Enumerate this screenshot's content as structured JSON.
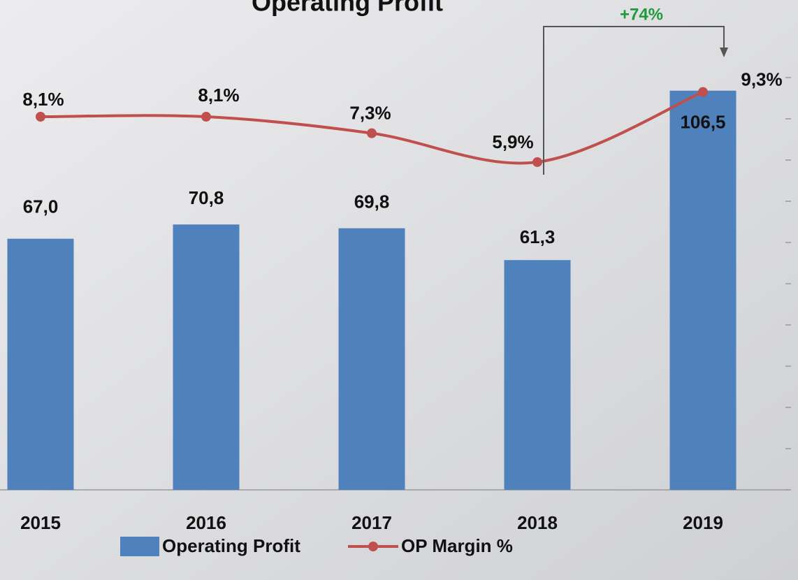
{
  "chart_data": {
    "type": "bar",
    "title": "Operating Profit",
    "categories": [
      "2015",
      "2016",
      "2017",
      "2018",
      "2019"
    ],
    "series": [
      {
        "name": "Operating Profit",
        "type": "bar",
        "color": "#4f81bd",
        "values": [
          67.0,
          70.8,
          69.8,
          61.3,
          106.5
        ],
        "value_labels": [
          "67,0",
          "70,8",
          "69,8",
          "61,3",
          "106,5"
        ]
      },
      {
        "name": "OP Margin %",
        "type": "line",
        "axis": "y2",
        "color": "#c0504d",
        "values": [
          8.1,
          8.1,
          7.3,
          5.9,
          9.3
        ],
        "value_labels": [
          "8,1%",
          "8,1%",
          "7,3%",
          "5,9%",
          "9,3%"
        ]
      }
    ],
    "ylim": [
      0,
      110
    ],
    "y2lim": [
      -10,
      10
    ],
    "y2ticks": [
      -10,
      -8,
      -6,
      -4,
      -2,
      0,
      2,
      4,
      6,
      8,
      10
    ],
    "annotations": [
      {
        "text": "+74%",
        "color": "#1e9a3c"
      }
    ]
  }
}
